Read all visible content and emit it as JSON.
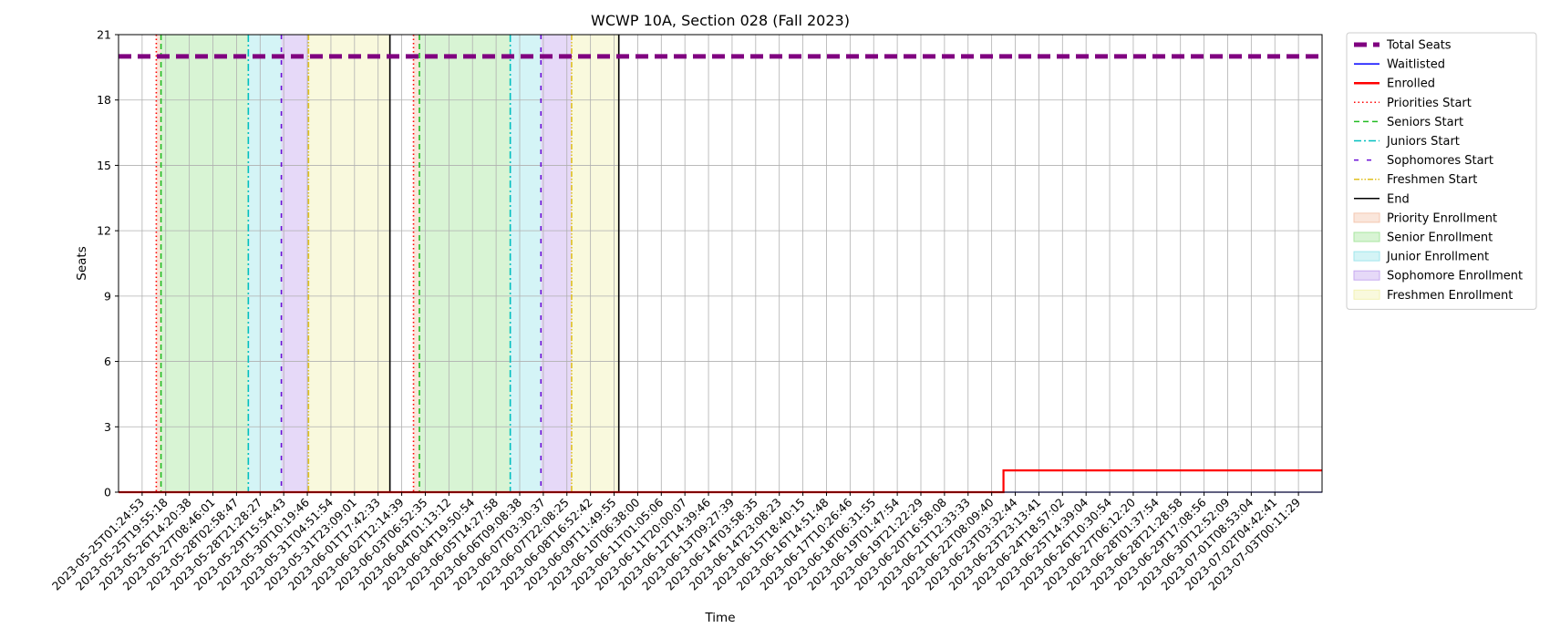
{
  "chart_data": {
    "type": "line",
    "title": "WCWP 10A, Section 028 (Fall 2023)",
    "xlabel": "Time",
    "ylabel": "Seats",
    "ylim": [
      0,
      21
    ],
    "y_ticks": [
      0,
      3,
      6,
      9,
      12,
      15,
      18,
      21
    ],
    "x_tick_labels": [
      "2023-05-25T01:24:53",
      "2023-05-25T19:55:18",
      "2023-05-26T14:20:38",
      "2023-05-27T08:46:01",
      "2023-05-28T02:58:47",
      "2023-05-28T21:28:27",
      "2023-05-29T15:54:43",
      "2023-05-30T10:19:46",
      "2023-05-31T04:51:54",
      "2023-05-31T23:09:01",
      "2023-06-01T17:42:33",
      "2023-06-02T12:14:39",
      "2023-06-03T06:52:35",
      "2023-06-04T01:13:12",
      "2023-06-04T19:50:54",
      "2023-06-05T14:27:58",
      "2023-06-06T09:08:38",
      "2023-06-07T03:30:37",
      "2023-06-07T22:08:25",
      "2023-06-08T16:52:42",
      "2023-06-09T11:49:55",
      "2023-06-10T06:38:00",
      "2023-06-11T01:05:06",
      "2023-06-11T20:00:07",
      "2023-06-12T14:39:46",
      "2023-06-13T09:27:39",
      "2023-06-14T03:58:35",
      "2023-06-14T23:08:23",
      "2023-06-15T18:40:15",
      "2023-06-16T14:51:48",
      "2023-06-17T10:26:46",
      "2023-06-18T06:31:55",
      "2023-06-19T01:47:54",
      "2023-06-19T21:22:29",
      "2023-06-20T16:58:08",
      "2023-06-21T12:33:33",
      "2023-06-22T08:09:40",
      "2023-06-23T03:32:44",
      "2023-06-23T23:13:41",
      "2023-06-24T18:57:02",
      "2023-06-25T14:39:04",
      "2023-06-26T10:30:54",
      "2023-06-27T06:12:20",
      "2023-06-28T01:37:54",
      "2023-06-28T21:28:58",
      "2023-06-29T17:08:56",
      "2023-06-30T12:52:09",
      "2023-07-01T08:53:04",
      "2023-07-02T04:42:41",
      "2023-07-03T00:11:29"
    ],
    "x_range_index": [
      -1,
      50
    ],
    "grid": true,
    "legend_placement": "outside right, top",
    "series": [
      {
        "name": "Total Seats",
        "style": "dashed",
        "color": "#800080",
        "x_index": [
          -1,
          50
        ],
        "values": [
          20,
          20
        ]
      },
      {
        "name": "Waitlisted",
        "style": "solid",
        "color": "#0000ff",
        "x_index": [
          -1,
          50
        ],
        "values": [
          0,
          0
        ]
      },
      {
        "name": "Enrolled",
        "style": "solid-step",
        "color": "#ff0000",
        "x_index": [
          -1,
          36.5,
          50
        ],
        "values": [
          0,
          1,
          1
        ]
      }
    ],
    "bands": [
      {
        "name": "Priority Enrollment",
        "color": "#f4c7b0",
        "ranges": [
          [
            0.6,
            0.8
          ],
          [
            11.5,
            11.75
          ]
        ]
      },
      {
        "name": "Senior Enrollment",
        "color": "#a8e6a0",
        "ranges": [
          [
            0.8,
            4.5
          ],
          [
            11.75,
            15.6
          ]
        ]
      },
      {
        "name": "Junior Enrollment",
        "color": "#a0e6ec",
        "ranges": [
          [
            4.5,
            5.9
          ],
          [
            15.6,
            16.9
          ]
        ]
      },
      {
        "name": "Sophomore Enrollment",
        "color": "#c7aaf0",
        "ranges": [
          [
            5.9,
            7.05
          ],
          [
            16.9,
            18.2
          ]
        ]
      },
      {
        "name": "Freshmen Enrollment",
        "color": "#f2f2b4",
        "ranges": [
          [
            7.05,
            10.5
          ],
          [
            18.2,
            20.2
          ]
        ]
      }
    ],
    "events": [
      {
        "name": "Priorities Start",
        "color": "#ff0000",
        "style": "dotted",
        "x_index": [
          0.6,
          11.5
        ]
      },
      {
        "name": "Seniors Start",
        "color": "#22bb22",
        "style": "dashed",
        "x_index": [
          0.8,
          11.75
        ]
      },
      {
        "name": "Juniors Start",
        "color": "#00bfbf",
        "style": "dashdot",
        "x_index": [
          4.5,
          15.6
        ]
      },
      {
        "name": "Sophomores Start",
        "color": "#6a0dd6",
        "style": "loosedash",
        "x_index": [
          5.9,
          16.9
        ]
      },
      {
        "name": "Freshmen Start",
        "color": "#e0c020",
        "style": "dashdotdot",
        "x_index": [
          7.05,
          18.2
        ]
      },
      {
        "name": "End",
        "color": "#000000",
        "style": "solid",
        "x_index": [
          10.5,
          20.2
        ]
      }
    ],
    "legend": [
      {
        "label": "Total Seats",
        "kind": "line",
        "color": "#800080",
        "style": "dashed-thick"
      },
      {
        "label": "Waitlisted",
        "kind": "line",
        "color": "#0000ff",
        "style": "solid"
      },
      {
        "label": "Enrolled",
        "kind": "line",
        "color": "#ff0000",
        "style": "solid-thick"
      },
      {
        "label": "Priorities Start",
        "kind": "line",
        "color": "#ff0000",
        "style": "dotted"
      },
      {
        "label": "Seniors Start",
        "kind": "line",
        "color": "#22bb22",
        "style": "dashed"
      },
      {
        "label": "Juniors Start",
        "kind": "line",
        "color": "#00bfbf",
        "style": "dashdot"
      },
      {
        "label": "Sophomores Start",
        "kind": "line",
        "color": "#6a0dd6",
        "style": "loosedash"
      },
      {
        "label": "Freshmen Start",
        "kind": "line",
        "color": "#e0c020",
        "style": "dashdotdot"
      },
      {
        "label": "End",
        "kind": "line",
        "color": "#000000",
        "style": "solid"
      },
      {
        "label": "Priority Enrollment",
        "kind": "patch",
        "color": "#f4c7b0"
      },
      {
        "label": "Senior Enrollment",
        "kind": "patch",
        "color": "#a8e6a0"
      },
      {
        "label": "Junior Enrollment",
        "kind": "patch",
        "color": "#a0e6ec"
      },
      {
        "label": "Sophomore Enrollment",
        "kind": "patch",
        "color": "#c7aaf0"
      },
      {
        "label": "Freshmen Enrollment",
        "kind": "patch",
        "color": "#f2f2b4"
      }
    ]
  }
}
